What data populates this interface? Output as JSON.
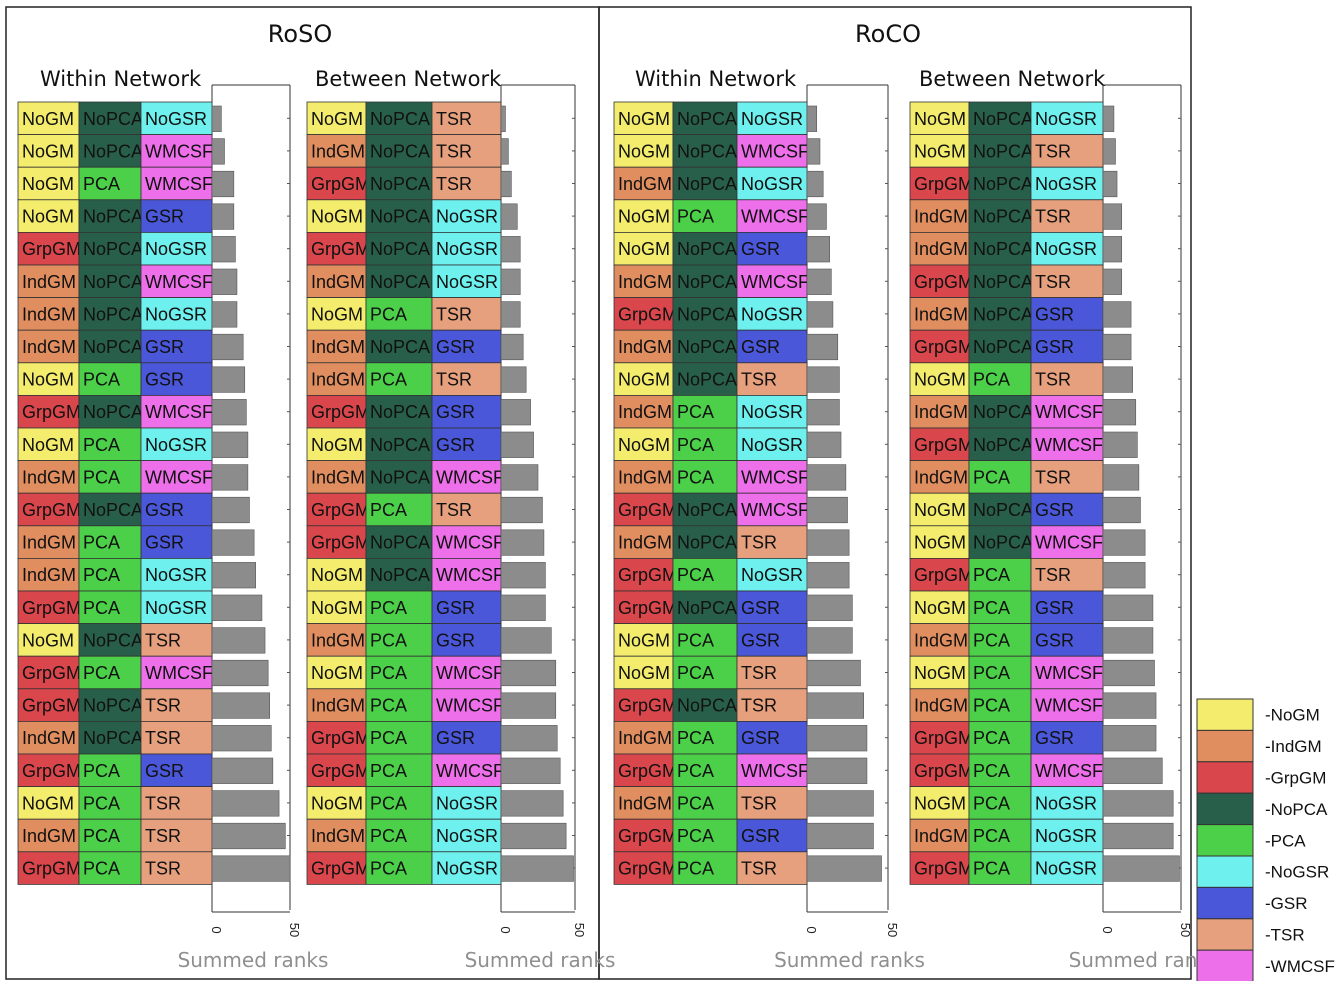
{
  "colors": {
    "NoGM": "#f3ec6c",
    "IndGM": "#e08e5f",
    "GrpGM": "#d9474c",
    "NoPCA": "#285f4b",
    "PCA": "#4ccf49",
    "NoGSR": "#6ef0ee",
    "GSR": "#4a57d9",
    "TSR": "#e6a07d",
    "WMCSF": "#ee6fea",
    "bar": "#8c8c8c"
  },
  "legend": [
    "NoGM",
    "IndGM",
    "GrpGM",
    "NoPCA",
    "PCA",
    "NoGSR",
    "GSR",
    "TSR",
    "WMCSF"
  ],
  "legend_prefix": "-",
  "chart_data": [
    {
      "type": "bar",
      "panel_title": "RoSO",
      "title": "Within Network",
      "xlabel": "Summed ranks",
      "xlim": [
        0,
        50
      ],
      "xticks": [
        "0",
        "50"
      ],
      "rows": [
        [
          "NoGM",
          "NoPCA",
          "NoGSR"
        ],
        [
          "NoGM",
          "NoPCA",
          "WMCSF"
        ],
        [
          "NoGM",
          "PCA",
          "WMCSF"
        ],
        [
          "NoGM",
          "NoPCA",
          "GSR"
        ],
        [
          "GrpGM",
          "NoPCA",
          "NoGSR"
        ],
        [
          "IndGM",
          "NoPCA",
          "WMCSF"
        ],
        [
          "IndGM",
          "NoPCA",
          "NoGSR"
        ],
        [
          "IndGM",
          "NoPCA",
          "GSR"
        ],
        [
          "NoGM",
          "PCA",
          "GSR"
        ],
        [
          "GrpGM",
          "NoPCA",
          "WMCSF"
        ],
        [
          "NoGM",
          "PCA",
          "NoGSR"
        ],
        [
          "IndGM",
          "PCA",
          "WMCSF"
        ],
        [
          "GrpGM",
          "NoPCA",
          "GSR"
        ],
        [
          "IndGM",
          "PCA",
          "GSR"
        ],
        [
          "IndGM",
          "PCA",
          "NoGSR"
        ],
        [
          "GrpGM",
          "PCA",
          "NoGSR"
        ],
        [
          "NoGM",
          "NoPCA",
          "TSR"
        ],
        [
          "GrpGM",
          "PCA",
          "WMCSF"
        ],
        [
          "GrpGM",
          "NoPCA",
          "TSR"
        ],
        [
          "IndGM",
          "NoPCA",
          "TSR"
        ],
        [
          "GrpGM",
          "PCA",
          "GSR"
        ],
        [
          "NoGM",
          "PCA",
          "TSR"
        ],
        [
          "IndGM",
          "PCA",
          "TSR"
        ],
        [
          "GrpGM",
          "PCA",
          "TSR"
        ]
      ],
      "values": [
        6,
        8,
        14,
        14,
        15,
        16,
        16,
        20,
        21,
        22,
        23,
        23,
        24,
        27,
        28,
        32,
        34,
        36,
        37,
        38,
        39,
        43,
        47,
        50
      ]
    },
    {
      "type": "bar",
      "panel_title": "RoSO",
      "title": "Between Network",
      "xlabel": "Summed ranks",
      "xlim": [
        0,
        50
      ],
      "xticks": [
        "0",
        "50"
      ],
      "rows": [
        [
          "NoGM",
          "NoPCA",
          "TSR"
        ],
        [
          "IndGM",
          "NoPCA",
          "TSR"
        ],
        [
          "GrpGM",
          "NoPCA",
          "TSR"
        ],
        [
          "NoGM",
          "NoPCA",
          "NoGSR"
        ],
        [
          "GrpGM",
          "NoPCA",
          "NoGSR"
        ],
        [
          "IndGM",
          "NoPCA",
          "NoGSR"
        ],
        [
          "NoGM",
          "PCA",
          "TSR"
        ],
        [
          "IndGM",
          "NoPCA",
          "GSR"
        ],
        [
          "IndGM",
          "PCA",
          "TSR"
        ],
        [
          "GrpGM",
          "NoPCA",
          "GSR"
        ],
        [
          "NoGM",
          "NoPCA",
          "GSR"
        ],
        [
          "IndGM",
          "NoPCA",
          "WMCSF"
        ],
        [
          "GrpGM",
          "PCA",
          "TSR"
        ],
        [
          "GrpGM",
          "NoPCA",
          "WMCSF"
        ],
        [
          "NoGM",
          "NoPCA",
          "WMCSF"
        ],
        [
          "NoGM",
          "PCA",
          "GSR"
        ],
        [
          "IndGM",
          "PCA",
          "GSR"
        ],
        [
          "NoGM",
          "PCA",
          "WMCSF"
        ],
        [
          "IndGM",
          "PCA",
          "WMCSF"
        ],
        [
          "GrpGM",
          "PCA",
          "GSR"
        ],
        [
          "GrpGM",
          "PCA",
          "WMCSF"
        ],
        [
          "NoGM",
          "PCA",
          "NoGSR"
        ],
        [
          "IndGM",
          "PCA",
          "NoGSR"
        ],
        [
          "GrpGM",
          "PCA",
          "NoGSR"
        ]
      ],
      "values": [
        3,
        5,
        7,
        11,
        13,
        13,
        13,
        15,
        17,
        20,
        22,
        25,
        28,
        29,
        30,
        30,
        34,
        37,
        37,
        38,
        40,
        42,
        44,
        49
      ]
    },
    {
      "type": "bar",
      "panel_title": "RoCO",
      "title": "Within Network",
      "xlabel": "Summed ranks",
      "xlim": [
        0,
        50
      ],
      "xticks": [
        "0",
        "50"
      ],
      "rows": [
        [
          "NoGM",
          "NoPCA",
          "NoGSR"
        ],
        [
          "NoGM",
          "NoPCA",
          "WMCSF"
        ],
        [
          "IndGM",
          "NoPCA",
          "NoGSR"
        ],
        [
          "NoGM",
          "PCA",
          "WMCSF"
        ],
        [
          "NoGM",
          "NoPCA",
          "GSR"
        ],
        [
          "IndGM",
          "NoPCA",
          "WMCSF"
        ],
        [
          "GrpGM",
          "NoPCA",
          "NoGSR"
        ],
        [
          "IndGM",
          "NoPCA",
          "GSR"
        ],
        [
          "NoGM",
          "NoPCA",
          "TSR"
        ],
        [
          "IndGM",
          "PCA",
          "NoGSR"
        ],
        [
          "NoGM",
          "PCA",
          "NoGSR"
        ],
        [
          "IndGM",
          "PCA",
          "WMCSF"
        ],
        [
          "GrpGM",
          "NoPCA",
          "WMCSF"
        ],
        [
          "IndGM",
          "NoPCA",
          "TSR"
        ],
        [
          "GrpGM",
          "PCA",
          "NoGSR"
        ],
        [
          "GrpGM",
          "NoPCA",
          "GSR"
        ],
        [
          "NoGM",
          "PCA",
          "GSR"
        ],
        [
          "NoGM",
          "PCA",
          "TSR"
        ],
        [
          "GrpGM",
          "NoPCA",
          "TSR"
        ],
        [
          "IndGM",
          "PCA",
          "GSR"
        ],
        [
          "GrpGM",
          "PCA",
          "WMCSF"
        ],
        [
          "IndGM",
          "PCA",
          "TSR"
        ],
        [
          "GrpGM",
          "PCA",
          "GSR"
        ],
        [
          "GrpGM",
          "PCA",
          "TSR"
        ]
      ],
      "values": [
        6,
        8,
        10,
        12,
        14,
        15,
        16,
        19,
        20,
        20,
        21,
        24,
        25,
        26,
        26,
        28,
        28,
        33,
        35,
        37,
        37,
        41,
        41,
        46
      ]
    },
    {
      "type": "bar",
      "panel_title": "RoCO",
      "title": "Between Network",
      "xlabel": "Summed ranks",
      "xlim": [
        0,
        50
      ],
      "xticks": [
        "0",
        "50"
      ],
      "rows": [
        [
          "NoGM",
          "NoPCA",
          "NoGSR"
        ],
        [
          "NoGM",
          "NoPCA",
          "TSR"
        ],
        [
          "GrpGM",
          "NoPCA",
          "NoGSR"
        ],
        [
          "IndGM",
          "NoPCA",
          "TSR"
        ],
        [
          "IndGM",
          "NoPCA",
          "NoGSR"
        ],
        [
          "GrpGM",
          "NoPCA",
          "TSR"
        ],
        [
          "IndGM",
          "NoPCA",
          "GSR"
        ],
        [
          "GrpGM",
          "NoPCA",
          "GSR"
        ],
        [
          "NoGM",
          "PCA",
          "TSR"
        ],
        [
          "IndGM",
          "NoPCA",
          "WMCSF"
        ],
        [
          "GrpGM",
          "NoPCA",
          "WMCSF"
        ],
        [
          "IndGM",
          "PCA",
          "TSR"
        ],
        [
          "NoGM",
          "NoPCA",
          "GSR"
        ],
        [
          "NoGM",
          "NoPCA",
          "WMCSF"
        ],
        [
          "GrpGM",
          "PCA",
          "TSR"
        ],
        [
          "NoGM",
          "PCA",
          "GSR"
        ],
        [
          "IndGM",
          "PCA",
          "GSR"
        ],
        [
          "NoGM",
          "PCA",
          "WMCSF"
        ],
        [
          "IndGM",
          "PCA",
          "WMCSF"
        ],
        [
          "GrpGM",
          "PCA",
          "GSR"
        ],
        [
          "GrpGM",
          "PCA",
          "WMCSF"
        ],
        [
          "NoGM",
          "PCA",
          "NoGSR"
        ],
        [
          "IndGM",
          "PCA",
          "NoGSR"
        ],
        [
          "GrpGM",
          "PCA",
          "NoGSR"
        ]
      ],
      "values": [
        7,
        8,
        9,
        12,
        12,
        12,
        18,
        18,
        19,
        21,
        22,
        23,
        24,
        27,
        27,
        32,
        32,
        33,
        34,
        34,
        38,
        45,
        45,
        49
      ]
    }
  ]
}
